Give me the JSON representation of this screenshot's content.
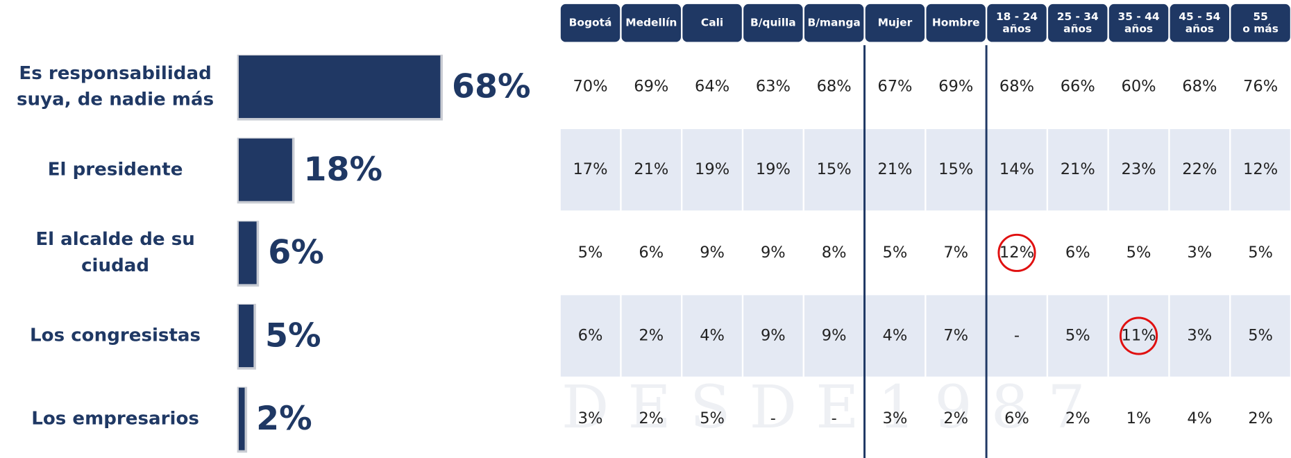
{
  "chart_data": {
    "type": "bar",
    "categories": [
      "Es responsabilidad suya, de nadie más",
      "El presidente",
      "El alcalde de su ciudad",
      "Los congresistas",
      "Los empresarios"
    ],
    "values": [
      68,
      18,
      6,
      5,
      2
    ],
    "value_labels": [
      "68%",
      "18%",
      "6%",
      "5%",
      "2%"
    ],
    "color": "#203864"
  },
  "table": {
    "columns": [
      [
        "Bogotá"
      ],
      [
        "Medellín"
      ],
      [
        "Cali"
      ],
      [
        "B/quilla"
      ],
      [
        "B/manga"
      ],
      [
        "Mujer"
      ],
      [
        "Hombre"
      ],
      [
        "18 - 24",
        "años"
      ],
      [
        "25 - 34",
        "años"
      ],
      [
        "35 - 44",
        "años"
      ],
      [
        "45 - 54",
        "años"
      ],
      [
        "55",
        "o más"
      ]
    ],
    "rows": [
      [
        "70%",
        "69%",
        "64%",
        "63%",
        "68%",
        "67%",
        "69%",
        "68%",
        "66%",
        "60%",
        "68%",
        "76%"
      ],
      [
        "17%",
        "21%",
        "19%",
        "19%",
        "15%",
        "21%",
        "15%",
        "14%",
        "21%",
        "23%",
        "22%",
        "12%"
      ],
      [
        "5%",
        "6%",
        "9%",
        "9%",
        "8%",
        "5%",
        "7%",
        "12%",
        "6%",
        "5%",
        "3%",
        "5%"
      ],
      [
        "6%",
        "2%",
        "4%",
        "9%",
        "9%",
        "4%",
        "7%",
        "-",
        "5%",
        "11%",
        "3%",
        "5%"
      ],
      [
        "3%",
        "2%",
        "5%",
        "-",
        "-",
        "3%",
        "2%",
        "6%",
        "2%",
        "1%",
        "4%",
        "2%"
      ]
    ]
  },
  "watermark": "D E S D E 1 9 8 7"
}
